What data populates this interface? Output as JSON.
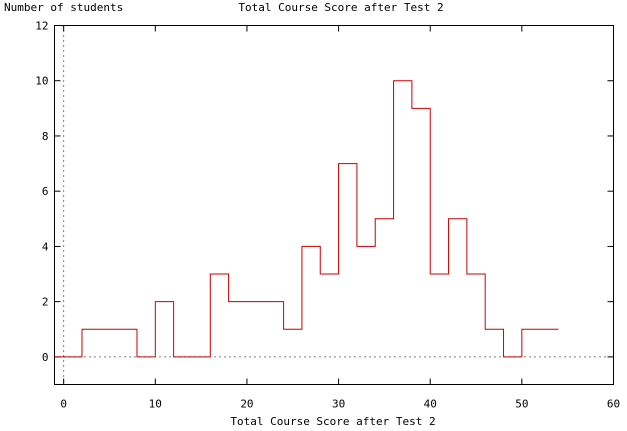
{
  "chart_data": {
    "type": "line",
    "style": "step histogram",
    "title": "Total Course Score after Test 2",
    "xlabel": "Total Course Score after Test 2",
    "ylabel": "Number of students",
    "xlim": [
      -1,
      60
    ],
    "ylim": [
      -1,
      12
    ],
    "xticks": [
      0,
      10,
      20,
      30,
      40,
      50,
      60
    ],
    "yticks": [
      0,
      2,
      4,
      6,
      8,
      10,
      12
    ],
    "grid": false,
    "zero_lines": "dotted",
    "series": [
      {
        "color": "#cc0000",
        "bins": [
          {
            "x0": -1,
            "x1": 2,
            "count": 0
          },
          {
            "x0": 2,
            "x1": 8,
            "count": 1
          },
          {
            "x0": 8,
            "x1": 10,
            "count": 0
          },
          {
            "x0": 10,
            "x1": 12,
            "count": 2
          },
          {
            "x0": 12,
            "x1": 16,
            "count": 0
          },
          {
            "x0": 16,
            "x1": 18,
            "count": 3
          },
          {
            "x0": 18,
            "x1": 24,
            "count": 2
          },
          {
            "x0": 24,
            "x1": 26,
            "count": 1
          },
          {
            "x0": 26,
            "x1": 28,
            "count": 4
          },
          {
            "x0": 28,
            "x1": 30,
            "count": 3
          },
          {
            "x0": 30,
            "x1": 32,
            "count": 7
          },
          {
            "x0": 32,
            "x1": 34,
            "count": 4
          },
          {
            "x0": 34,
            "x1": 36,
            "count": 5
          },
          {
            "x0": 36,
            "x1": 38,
            "count": 10
          },
          {
            "x0": 38,
            "x1": 40,
            "count": 9
          },
          {
            "x0": 40,
            "x1": 42,
            "count": 3
          },
          {
            "x0": 42,
            "x1": 44,
            "count": 5
          },
          {
            "x0": 44,
            "x1": 46,
            "count": 3
          },
          {
            "x0": 46,
            "x1": 48,
            "count": 1
          },
          {
            "x0": 48,
            "x1": 50,
            "count": 0
          },
          {
            "x0": 50,
            "x1": 54,
            "count": 1
          }
        ]
      }
    ]
  }
}
